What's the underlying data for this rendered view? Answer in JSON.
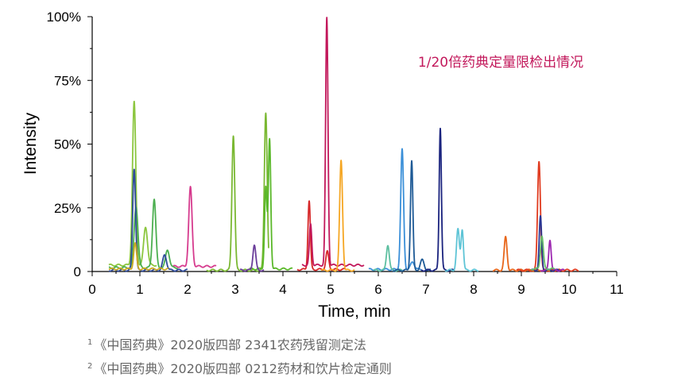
{
  "chart_data": {
    "type": "line",
    "annotation": "1/20倍药典定量限检出情况",
    "xlabel": "Time, min",
    "ylabel": "Intensity",
    "xlim": [
      0,
      11
    ],
    "ylim": [
      0,
      100
    ],
    "x_ticks": [
      0,
      1,
      2,
      3,
      4,
      5,
      6,
      7,
      8,
      9,
      10,
      11
    ],
    "x_tick_labels": [
      "0",
      "1",
      "2",
      "3",
      "4",
      "5",
      "6",
      "7",
      "8",
      "9",
      "10",
      "11"
    ],
    "y_ticks": [
      0,
      25,
      50,
      75,
      100
    ],
    "y_tick_labels": [
      "0",
      "25%",
      "50%",
      "75%",
      "100%"
    ],
    "grid": false,
    "series": [
      {
        "color": "#8cc63f",
        "x_range": [
          0.35,
          1.35
        ],
        "baseline": 2.5,
        "peaks": [
          [
            0.88,
            64,
            0.035
          ],
          [
            1.12,
            15,
            0.04
          ]
        ]
      },
      {
        "color": "#4caf50",
        "x_range": [
          0.35,
          1.8
        ],
        "baseline": 1.5,
        "peaks": [
          [
            0.92,
            24,
            0.04
          ],
          [
            1.3,
            27,
            0.035
          ],
          [
            1.58,
            7,
            0.04
          ]
        ]
      },
      {
        "color": "#2e4a9a",
        "x_range": [
          0.35,
          2.0
        ],
        "baseline": 0.5,
        "peaks": [
          [
            0.88,
            40,
            0.03
          ],
          [
            1.52,
            6,
            0.04
          ]
        ]
      },
      {
        "color": "#ccaa22",
        "x_range": [
          0.35,
          1.6
        ],
        "baseline": 1.0,
        "peaks": [
          [
            0.9,
            10,
            0.03
          ]
        ]
      },
      {
        "color": "#d63b8e",
        "x_range": [
          1.7,
          2.6
        ],
        "baseline": 2.0,
        "peaks": [
          [
            2.06,
            31,
            0.035
          ]
        ]
      },
      {
        "color": "#7ab832",
        "x_range": [
          2.4,
          3.7
        ],
        "baseline": 0.5,
        "peaks": [
          [
            2.96,
            53,
            0.03
          ],
          [
            3.64,
            62,
            0.03
          ]
        ]
      },
      {
        "color": "#5ab82a",
        "x_range": [
          3.3,
          4.2
        ],
        "baseline": 1.0,
        "peaks": [
          [
            3.72,
            51,
            0.025
          ],
          [
            3.64,
            32,
            0.025
          ]
        ]
      },
      {
        "color": "#6a3d9a",
        "x_range": [
          3.1,
          3.6
        ],
        "baseline": 0.5,
        "peaks": [
          [
            3.4,
            10,
            0.03
          ]
        ]
      },
      {
        "color": "#d62728",
        "x_range": [
          4.3,
          5.3
        ],
        "baseline": 0.8,
        "peaks": [
          [
            4.55,
            27,
            0.025
          ],
          [
            4.93,
            7,
            0.03
          ]
        ]
      },
      {
        "color": "#c2185b",
        "x_range": [
          4.4,
          5.7
        ],
        "baseline": 2.5,
        "peaks": [
          [
            4.92,
            97,
            0.025
          ],
          [
            4.58,
            16,
            0.025
          ]
        ]
      },
      {
        "color": "#f5a623",
        "x_range": [
          4.8,
          5.5
        ],
        "baseline": 0.5,
        "peaks": [
          [
            5.22,
            43,
            0.03
          ]
        ]
      },
      {
        "color": "#3a8fd8",
        "x_range": [
          5.8,
          6.9
        ],
        "baseline": 0.8,
        "peaks": [
          [
            6.5,
            47,
            0.03
          ],
          [
            6.72,
            3,
            0.04
          ]
        ]
      },
      {
        "color": "#5dbfa0",
        "x_range": [
          5.9,
          6.5
        ],
        "baseline": 0.5,
        "peaks": [
          [
            6.2,
            10,
            0.03
          ]
        ]
      },
      {
        "color": "#1e5a96",
        "x_range": [
          6.3,
          7.1
        ],
        "baseline": 0.5,
        "peaks": [
          [
            6.7,
            43,
            0.025
          ],
          [
            6.92,
            4,
            0.04
          ]
        ]
      },
      {
        "color": "#1a237e",
        "x_range": [
          6.9,
          7.6
        ],
        "baseline": 0.5,
        "peaks": [
          [
            7.3,
            38,
            0.025
          ],
          [
            7.3,
            18,
            0.02
          ]
        ]
      },
      {
        "color": "#5ec4d6",
        "x_range": [
          7.4,
          8.1
        ],
        "baseline": 0.5,
        "peaks": [
          [
            7.67,
            16,
            0.03
          ],
          [
            7.76,
            16,
            0.025
          ]
        ]
      },
      {
        "color": "#e8661a",
        "x_range": [
          8.4,
          9.6
        ],
        "baseline": 0.5,
        "peaks": [
          [
            8.67,
            13,
            0.03
          ]
        ]
      },
      {
        "color": "#e03a1e",
        "x_range": [
          8.9,
          10.2
        ],
        "baseline": 0.5,
        "peaks": [
          [
            9.37,
            43,
            0.03
          ]
        ]
      },
      {
        "color": "#283593",
        "x_range": [
          9.2,
          9.8
        ],
        "baseline": 0.5,
        "peaks": [
          [
            9.4,
            21,
            0.025
          ]
        ]
      },
      {
        "color": "#9c27b0",
        "x_range": [
          9.4,
          9.9
        ],
        "baseline": 0.5,
        "peaks": [
          [
            9.6,
            12,
            0.025
          ]
        ]
      },
      {
        "color": "#66bb6a",
        "x_range": [
          9.2,
          9.7
        ],
        "baseline": 1.0,
        "peaks": [
          [
            9.43,
            13,
            0.03
          ]
        ]
      }
    ]
  },
  "footnotes": [
    {
      "mark": "1",
      "text": "《中国药典》2020版四部 2341农药残留测定法"
    },
    {
      "mark": "2",
      "text": "《中国药典》2020版四部 0212药材和饮片检定通则"
    }
  ],
  "colors": {
    "annotation": "#c2185b",
    "axis": "#000000",
    "footnote": "#666666"
  }
}
